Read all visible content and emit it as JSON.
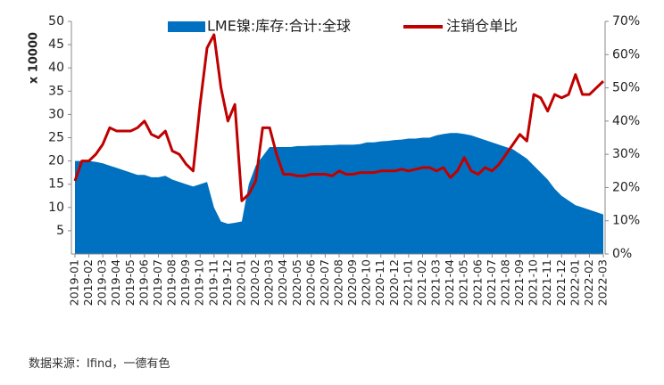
{
  "chart_data": {
    "type": "area-line",
    "y_axis_label": "x 10000",
    "source": "数据来源：Ifind，一德有色",
    "categories": [
      "2019-01",
      null,
      "2019-02",
      null,
      "2019-03",
      null,
      "2019-04",
      null,
      "2019-05",
      null,
      "2019-06",
      null,
      "2019-07",
      null,
      "2019-08",
      null,
      "2019-09",
      null,
      "2019-10",
      null,
      "2019-11",
      null,
      "2019-12",
      null,
      "2020-01",
      null,
      "2020-02",
      null,
      "2020-03",
      null,
      "2020-04",
      null,
      "2020-05",
      null,
      "2020-06",
      null,
      "2020-07",
      null,
      "2020-08",
      null,
      "2020-09",
      null,
      "2020-10",
      null,
      "2020-11",
      null,
      "2020-12",
      null,
      "2021-01",
      null,
      "2021-02",
      null,
      "2021-03",
      null,
      "2021-04",
      null,
      "2021-05",
      null,
      "2021-06",
      null,
      "2021-07",
      null,
      "2021-08",
      null,
      "2021-09",
      null,
      "2021-10",
      null,
      "2021-11",
      null,
      "2021-12",
      null,
      "2022-01",
      null,
      "2022-02",
      null,
      "2022-03"
    ],
    "series": [
      {
        "name": "LME镍:库存:合计:全球",
        "color": "#0070c0",
        "axis": "y",
        "values": [
          20,
          20,
          20,
          19.8,
          19.5,
          19,
          18.5,
          18,
          17.5,
          17,
          17,
          16.5,
          16.5,
          16.8,
          16,
          15.5,
          15,
          14.5,
          15,
          15.5,
          10,
          7,
          6.5,
          6.7,
          7,
          15,
          19,
          21,
          23,
          23,
          23,
          23,
          23.2,
          23.2,
          23.3,
          23.3,
          23.4,
          23.4,
          23.5,
          23.5,
          23.5,
          23.6,
          24,
          24,
          24.2,
          24.3,
          24.5,
          24.6,
          24.8,
          24.8,
          25,
          25,
          25.5,
          25.8,
          26,
          26,
          25.8,
          25.5,
          25,
          24.5,
          24,
          23.5,
          23,
          22.5,
          21.5,
          20.5,
          19,
          17.5,
          16,
          14,
          12.5,
          11.5,
          10.5,
          10,
          9.5,
          9,
          8.5
        ]
      },
      {
        "name": "注销仓单比",
        "color": "#c00000",
        "axis": "y2",
        "values": [
          22,
          28,
          28,
          30,
          33,
          38,
          37,
          37,
          37,
          38,
          40,
          36,
          35,
          37,
          31,
          30,
          27,
          25,
          45,
          62,
          66,
          50,
          40,
          45,
          16,
          18,
          22,
          38,
          38,
          30,
          24,
          24,
          23.5,
          23.5,
          24,
          24,
          24,
          23.5,
          25,
          24,
          24,
          24.5,
          24.5,
          24.5,
          25,
          25,
          25,
          25.5,
          25,
          25.5,
          26,
          26,
          25,
          26,
          23,
          25,
          29,
          25,
          24,
          26,
          25,
          27,
          30,
          33,
          36,
          34,
          48,
          47,
          43,
          48,
          47,
          48,
          54,
          48,
          48,
          50,
          52
        ]
      }
    ],
    "ylim": [
      0,
      50
    ],
    "yticks": [
      5,
      10,
      15,
      20,
      25,
      30,
      35,
      40,
      45,
      50
    ],
    "y2lim": [
      0,
      70
    ],
    "y2ticks": [
      {
        "value": 0,
        "label": "0%"
      },
      {
        "value": 10,
        "label": "10%"
      },
      {
        "value": 20,
        "label": "20%"
      },
      {
        "value": 30,
        "label": "30%"
      },
      {
        "value": 40,
        "label": "40%"
      },
      {
        "value": 50,
        "label": "50%"
      },
      {
        "value": 60,
        "label": "60%"
      },
      {
        "value": 70,
        "label": "70%"
      }
    ],
    "legend": "top"
  }
}
